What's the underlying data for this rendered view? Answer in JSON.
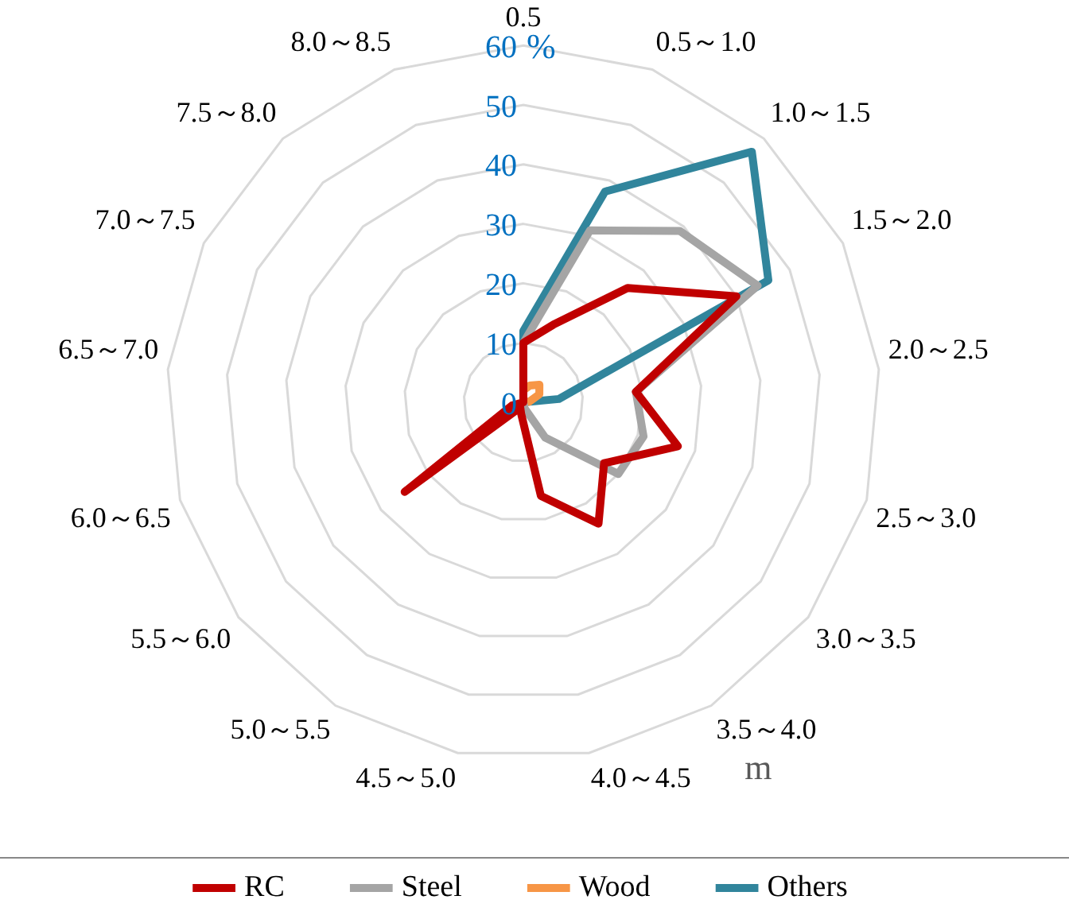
{
  "chart_data": {
    "type": "radar",
    "categories": [
      "0.5",
      "0.5～1.0",
      "1.0～1.5",
      "1.5～2.0",
      "2.0～2.5",
      "2.5～3.0",
      "3.0～3.5",
      "3.5～4.0",
      "4.0～4.5",
      "4.5～5.0",
      "5.0～5.5",
      "5.5～6.0",
      "6.0～6.5",
      "6.5～7.0",
      "7.0～7.5",
      "7.5～8.0",
      "8.0～8.5"
    ],
    "series": [
      {
        "name": "RC",
        "color": "#c00000",
        "values": [
          10,
          14,
          26,
          40,
          19,
          27,
          17,
          24,
          16,
          2,
          1,
          25,
          2,
          0,
          0,
          0,
          0
        ]
      },
      {
        "name": "Steel",
        "color": "#a5a5a5",
        "values": [
          10,
          31,
          39,
          44,
          19,
          21,
          20,
          7,
          1,
          0,
          0,
          0,
          0,
          0,
          0,
          0,
          0
        ]
      },
      {
        "name": "Wood",
        "color": "#f79646",
        "values": [
          2,
          3,
          4,
          3,
          1,
          0,
          0,
          0,
          0,
          0,
          0,
          0,
          0,
          0,
          0,
          0,
          0
        ]
      },
      {
        "name": "Others",
        "color": "#31859c",
        "values": [
          12,
          38,
          57,
          46,
          6,
          0,
          0,
          0,
          0,
          0,
          0,
          0,
          0,
          0,
          0,
          0,
          0
        ]
      }
    ],
    "ylim": [
      0,
      60
    ],
    "yticks": [
      0,
      10,
      20,
      30,
      40,
      50,
      60
    ],
    "ylabel": "%",
    "annotations": [
      "m"
    ],
    "grid": true,
    "legend": "bottom",
    "marker": "none"
  }
}
